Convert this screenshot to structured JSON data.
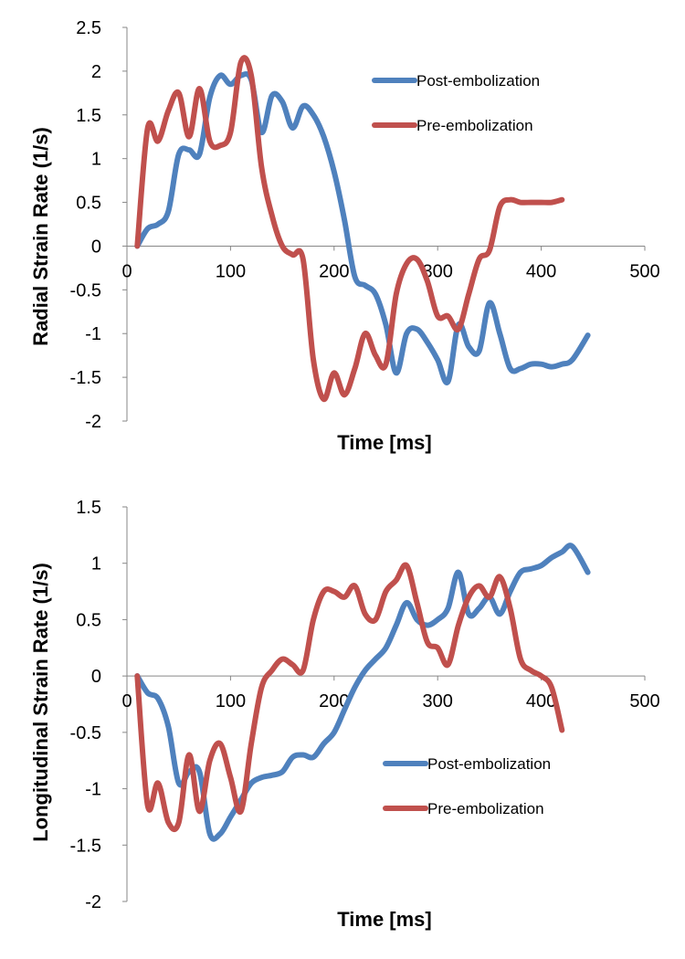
{
  "chart_data": [
    {
      "type": "line",
      "xlabel": "Time [ms]",
      "ylabel": "Radial Strain  Rate (1/s)",
      "xlim": [
        0,
        500
      ],
      "ylim": [
        -2,
        2.5
      ],
      "xticks": [
        0,
        100,
        200,
        300,
        400,
        500
      ],
      "xtick_labels": [
        "0",
        "100",
        "200",
        "300",
        "400",
        "500"
      ],
      "yticks": [
        2.5,
        2,
        1.5,
        1,
        0.5,
        0,
        -0.5,
        -1,
        -1.5,
        -2
      ],
      "ytick_labels": [
        "2.5",
        "2",
        "1.5",
        "1",
        "0.5",
        "0",
        "-0.5",
        "-1",
        "-1.5",
        "-2"
      ],
      "legend_position": "top-right",
      "series": [
        {
          "name": "Post-embolization",
          "color": "#4f81bd",
          "x": [
            10,
            20,
            30,
            40,
            50,
            60,
            70,
            80,
            90,
            100,
            110,
            120,
            130,
            140,
            150,
            160,
            170,
            180,
            190,
            200,
            210,
            220,
            230,
            240,
            250,
            260,
            270,
            280,
            290,
            300,
            310,
            320,
            330,
            340,
            350,
            360,
            370,
            380,
            390,
            400,
            410,
            420,
            430,
            445
          ],
          "y": [
            0,
            0.2,
            0.25,
            0.4,
            1.05,
            1.1,
            1.05,
            1.7,
            1.95,
            1.85,
            1.95,
            1.9,
            1.3,
            1.72,
            1.65,
            1.35,
            1.6,
            1.5,
            1.25,
            0.85,
            0.3,
            -0.35,
            -0.45,
            -0.55,
            -0.9,
            -1.45,
            -1.0,
            -0.95,
            -1.1,
            -1.3,
            -1.55,
            -0.9,
            -1.15,
            -1.2,
            -0.65,
            -1.0,
            -1.4,
            -1.4,
            -1.35,
            -1.35,
            -1.38,
            -1.35,
            -1.3,
            -1.02
          ]
        },
        {
          "name": "Pre-embolization",
          "color": "#c0504d",
          "x": [
            10,
            20,
            30,
            40,
            50,
            60,
            70,
            80,
            90,
            100,
            110,
            120,
            130,
            140,
            150,
            160,
            170,
            180,
            190,
            200,
            210,
            220,
            230,
            240,
            250,
            260,
            270,
            280,
            290,
            300,
            310,
            320,
            330,
            340,
            350,
            360,
            370,
            380,
            390,
            400,
            410,
            420
          ],
          "y": [
            0,
            1.35,
            1.2,
            1.55,
            1.75,
            1.25,
            1.8,
            1.2,
            1.15,
            1.3,
            2.1,
            1.95,
            0.9,
            0.35,
            0.0,
            -0.1,
            -0.15,
            -1.3,
            -1.75,
            -1.45,
            -1.7,
            -1.4,
            -1.0,
            -1.25,
            -1.35,
            -0.55,
            -0.2,
            -0.15,
            -0.4,
            -0.8,
            -0.8,
            -0.95,
            -0.55,
            -0.15,
            -0.05,
            0.45,
            0.53,
            0.5,
            0.5,
            0.5,
            0.5,
            0.53
          ]
        }
      ]
    },
    {
      "type": "line",
      "xlabel": "Time [ms]",
      "ylabel": "Longitudinal Strain  Rate  (1/s)",
      "xlim": [
        0,
        500
      ],
      "ylim": [
        -2,
        1.5
      ],
      "xticks": [
        0,
        100,
        200,
        300,
        400,
        500
      ],
      "xtick_labels": [
        "0",
        "100",
        "200",
        "300",
        "400",
        "500"
      ],
      "yticks": [
        1.5,
        1,
        0.5,
        0,
        -0.5,
        -1,
        -1.5,
        -2
      ],
      "ytick_labels": [
        "1.5",
        "1",
        "0.5",
        "0",
        "-0.5",
        "-1",
        "-1.5",
        "-2"
      ],
      "legend_position": "center-right",
      "series": [
        {
          "name": "Post-embolization",
          "color": "#4f81bd",
          "x": [
            10,
            20,
            30,
            40,
            50,
            60,
            70,
            80,
            90,
            100,
            110,
            120,
            130,
            140,
            150,
            160,
            170,
            180,
            190,
            200,
            210,
            220,
            230,
            240,
            250,
            260,
            270,
            280,
            290,
            300,
            310,
            320,
            330,
            340,
            350,
            360,
            370,
            380,
            390,
            400,
            410,
            420,
            430,
            445
          ],
          "y": [
            0,
            -0.15,
            -0.2,
            -0.45,
            -0.95,
            -0.85,
            -0.85,
            -1.4,
            -1.4,
            -1.25,
            -1.1,
            -0.95,
            -0.9,
            -0.88,
            -0.85,
            -0.72,
            -0.7,
            -0.72,
            -0.6,
            -0.5,
            -0.3,
            -0.1,
            0.05,
            0.15,
            0.25,
            0.45,
            0.65,
            0.5,
            0.45,
            0.5,
            0.6,
            0.92,
            0.55,
            0.6,
            0.7,
            0.55,
            0.75,
            0.92,
            0.95,
            0.98,
            1.05,
            1.1,
            1.15,
            0.92
          ]
        },
        {
          "name": "Pre-embolization",
          "color": "#c0504d",
          "x": [
            10,
            20,
            30,
            40,
            50,
            60,
            70,
            80,
            90,
            100,
            110,
            120,
            130,
            140,
            150,
            160,
            170,
            180,
            190,
            200,
            210,
            220,
            230,
            240,
            250,
            260,
            270,
            280,
            290,
            300,
            310,
            320,
            330,
            340,
            350,
            360,
            370,
            380,
            390,
            400,
            410,
            420
          ],
          "y": [
            0,
            -1.15,
            -0.95,
            -1.3,
            -1.3,
            -0.7,
            -1.2,
            -0.75,
            -0.6,
            -0.9,
            -1.2,
            -0.6,
            -0.1,
            0.05,
            0.15,
            0.1,
            0.05,
            0.5,
            0.75,
            0.75,
            0.7,
            0.8,
            0.55,
            0.5,
            0.75,
            0.85,
            0.98,
            0.65,
            0.3,
            0.25,
            0.1,
            0.45,
            0.7,
            0.8,
            0.7,
            0.88,
            0.6,
            0.15,
            0.05,
            0.0,
            -0.1,
            -0.48
          ]
        }
      ]
    }
  ]
}
